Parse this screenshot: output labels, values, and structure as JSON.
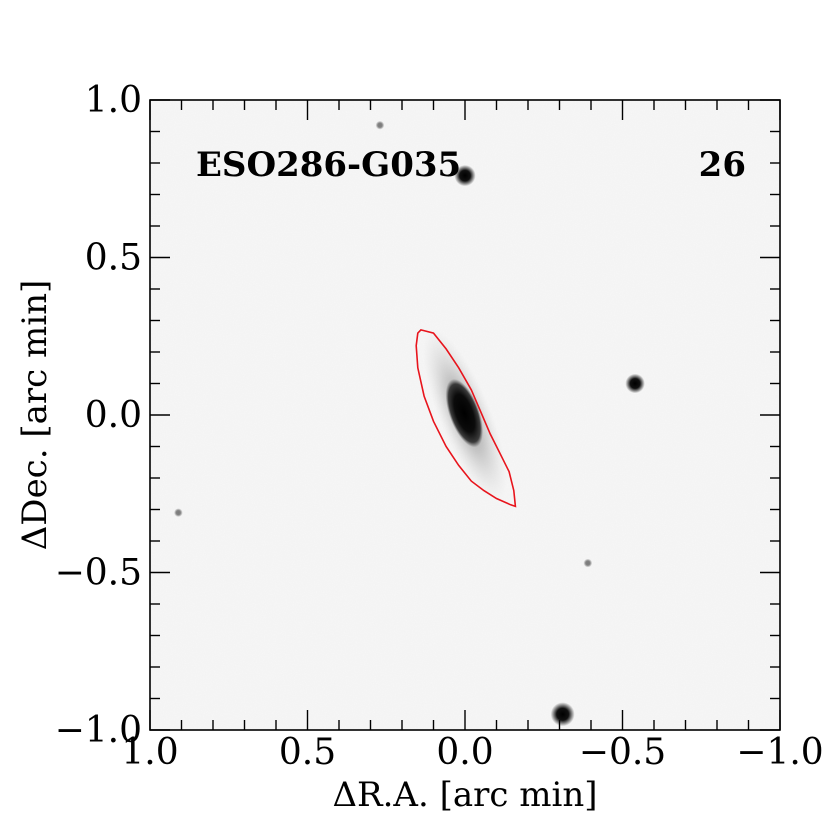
{
  "chart_data": {
    "type": "image",
    "object_name": "ESO286-G035",
    "panel_number": "26",
    "xlabel": "ΔR.A. [arc min]",
    "ylabel": "ΔDec. [arc min]",
    "xlim": [
      1.0,
      -1.0
    ],
    "ylim": [
      -1.0,
      1.0
    ],
    "x_ticks": [
      {
        "value": 1.0,
        "label": "1.0"
      },
      {
        "value": 0.5,
        "label": "0.5"
      },
      {
        "value": 0.0,
        "label": "0.0"
      },
      {
        "value": -0.5,
        "label": "−0.5"
      },
      {
        "value": -1.0,
        "label": "−1.0"
      }
    ],
    "y_ticks": [
      {
        "value": 1.0,
        "label": "1.0"
      },
      {
        "value": 0.5,
        "label": "0.5"
      },
      {
        "value": 0.0,
        "label": "0.0"
      },
      {
        "value": -0.5,
        "label": "−0.5"
      },
      {
        "value": -1.0,
        "label": "−1.0"
      }
    ],
    "minor_tick_step": 0.1,
    "contour_color": "#e8141c",
    "contour": [
      [
        0.14,
        0.27
      ],
      [
        0.1,
        0.26
      ],
      [
        0.06,
        0.21
      ],
      [
        0.02,
        0.15
      ],
      [
        -0.02,
        0.08
      ],
      [
        -0.05,
        0.01
      ],
      [
        -0.08,
        -0.06
      ],
      [
        -0.11,
        -0.12
      ],
      [
        -0.14,
        -0.18
      ],
      [
        -0.155,
        -0.24
      ],
      [
        -0.16,
        -0.29
      ],
      [
        -0.145,
        -0.285
      ],
      [
        -0.1,
        -0.265
      ],
      [
        -0.06,
        -0.24
      ],
      [
        -0.02,
        -0.21
      ],
      [
        0.02,
        -0.16
      ],
      [
        0.06,
        -0.1
      ],
      [
        0.1,
        -0.02
      ],
      [
        0.13,
        0.06
      ],
      [
        0.15,
        0.15
      ],
      [
        0.155,
        0.22
      ],
      [
        0.15,
        0.26
      ],
      [
        0.14,
        0.27
      ]
    ],
    "galaxy_center": [
      0.0,
      0.0
    ],
    "stars": [
      {
        "x": 0.0,
        "y": 0.76,
        "brightness": 0.85
      },
      {
        "x": -0.54,
        "y": 0.1,
        "brightness": 0.75
      },
      {
        "x": -0.31,
        "y": -0.95,
        "brightness": 1.0
      },
      {
        "x": 0.27,
        "y": 0.92,
        "brightness": 0.15
      },
      {
        "x": 0.91,
        "y": -0.31,
        "brightness": 0.15
      },
      {
        "x": -0.39,
        "y": -0.47,
        "brightness": 0.15
      }
    ]
  }
}
